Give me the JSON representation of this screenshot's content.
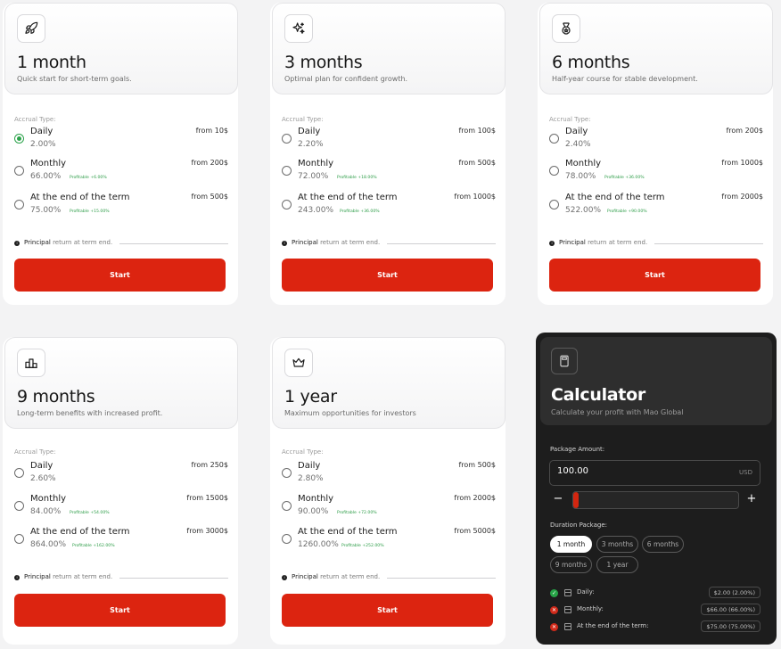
{
  "plans": [
    {
      "title": "1 month",
      "subtitle": "Quick start for short-term goals.",
      "icon": "rocket-icon",
      "accrual_label": "Accrual Type:",
      "options": [
        {
          "name": "Daily",
          "rate": "2.00%",
          "profit": "",
          "from": "from 10$",
          "selected": true
        },
        {
          "name": "Monthly",
          "rate": "66.00%",
          "profit": "Profitable +6.00%",
          "from": "from 200$",
          "selected": false
        },
        {
          "name": "At the end of the term",
          "rate": "75.00%",
          "profit": "Profitable +15.00%",
          "from": "from 500$",
          "selected": false
        }
      ],
      "principal_bold": "Principal",
      "principal_rest": " return at term end.",
      "start_label": "Start"
    },
    {
      "title": "3 months",
      "subtitle": "Optimal plan for confident growth.",
      "icon": "sparkles-icon",
      "accrual_label": "Accrual Type:",
      "options": [
        {
          "name": "Daily",
          "rate": "2.20%",
          "profit": "",
          "from": "from 100$",
          "selected": false
        },
        {
          "name": "Monthly",
          "rate": "72.00%",
          "profit": "Profitable +18.00%",
          "from": "from 500$",
          "selected": false
        },
        {
          "name": "At the end of the term",
          "rate": "243.00%",
          "profit": "Profitable +36.00%",
          "from": "from 1000$",
          "selected": false
        }
      ],
      "principal_bold": "Principal",
      "principal_rest": " return at term end.",
      "start_label": "Start"
    },
    {
      "title": "6 months",
      "subtitle": "Half-year course for stable development.",
      "icon": "medal-icon",
      "accrual_label": "Accrual Type:",
      "options": [
        {
          "name": "Daily",
          "rate": "2.40%",
          "profit": "",
          "from": "from 200$",
          "selected": false
        },
        {
          "name": "Monthly",
          "rate": "78.00%",
          "profit": "Profitable +36.00%",
          "from": "from 1000$",
          "selected": false
        },
        {
          "name": "At the end of the term",
          "rate": "522.00%",
          "profit": "Profitable +90.00%",
          "from": "from 2000$",
          "selected": false
        }
      ],
      "principal_bold": "Principal",
      "principal_rest": " return at term end.",
      "start_label": "Start"
    },
    {
      "title": "9 months",
      "subtitle": "Long-term benefits with increased profit.",
      "icon": "podium-icon",
      "accrual_label": "Accrual Type:",
      "options": [
        {
          "name": "Daily",
          "rate": "2.60%",
          "profit": "",
          "from": "from 250$",
          "selected": false
        },
        {
          "name": "Monthly",
          "rate": "84.00%",
          "profit": "Profitable +54.00%",
          "from": "from 1500$",
          "selected": false
        },
        {
          "name": "At the end of the term",
          "rate": "864.00%",
          "profit": "Profitable +162.00%",
          "from": "from 3000$",
          "selected": false
        }
      ],
      "principal_bold": "Principal",
      "principal_rest": " return at term end.",
      "start_label": "Start"
    },
    {
      "title": "1 year",
      "subtitle": "Maximum opportunities for investors",
      "icon": "crown-icon",
      "accrual_label": "Accrual Type:",
      "options": [
        {
          "name": "Daily",
          "rate": "2.80%",
          "profit": "",
          "from": "from 500$",
          "selected": false
        },
        {
          "name": "Monthly",
          "rate": "90.00%",
          "profit": "Profitable +72.00%",
          "from": "from 2000$",
          "selected": false
        },
        {
          "name": "At the end of the term",
          "rate": "1260.00%",
          "profit": "Profitable +252.00%",
          "from": "from 5000$",
          "selected": false
        }
      ],
      "principal_bold": "Principal",
      "principal_rest": " return at term end.",
      "start_label": "Start"
    }
  ],
  "calculator": {
    "title": "Calculator",
    "subtitle": "Calculate your profit with Mao Global",
    "icon": "calculator-icon",
    "package_amount_label": "Package Amount:",
    "amount_value": "100.00",
    "currency": "USD",
    "minus_label": "−",
    "plus_label": "+",
    "slider_fraction": 0.03,
    "duration_label": "Duration Package:",
    "durations": [
      "1 month",
      "3 months",
      "6 months",
      "9 months",
      "1 year"
    ],
    "active_duration": "1 month",
    "results": [
      {
        "label": "Daily:",
        "value": "$2.00 (2.00%)",
        "status": "ok"
      },
      {
        "label": "Monthly:",
        "value": "$66.00 (66.00%)",
        "status": "no"
      },
      {
        "label": "At the end of the term:",
        "value": "$75.00 (75.00%)",
        "status": "no"
      }
    ]
  },
  "colors": {
    "accent_red": "#dc2410",
    "profit_green": "#2b9c46",
    "calculator_bg": "#1d1d1d"
  }
}
